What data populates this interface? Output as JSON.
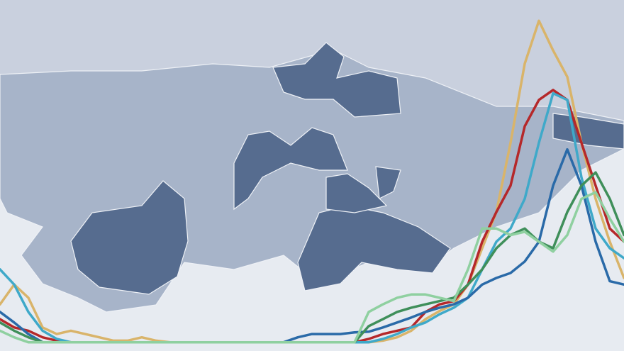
{
  "chart_data": {
    "type": "line",
    "ylim": [
      0,
      100
    ],
    "series": [
      {
        "color": "#d9b46a",
        "values": [
          12,
          18,
          14,
          5,
          3,
          4,
          3,
          2,
          1,
          1,
          2,
          1,
          0.5,
          0.5,
          0.5,
          0.5,
          0.5,
          0.5,
          0.5,
          0.5,
          0.5,
          0.5,
          0.5,
          0.5,
          0.5,
          0.5,
          0.5,
          1,
          2,
          4,
          7.5,
          10,
          12,
          18,
          29,
          40,
          61,
          85,
          98,
          89,
          81,
          61,
          44,
          31,
          20
        ]
      },
      {
        "color": "#b5282a",
        "values": [
          7.5,
          5,
          4,
          2,
          1,
          0.5,
          0.5,
          0.5,
          0.5,
          0.5,
          0.5,
          0.5,
          0.5,
          0.5,
          0.5,
          0.5,
          0.5,
          0.5,
          0.5,
          0.5,
          0.5,
          0.5,
          0.5,
          0.5,
          0.5,
          0.5,
          1.5,
          3,
          4,
          5,
          9.7,
          12,
          13,
          18,
          31,
          40,
          48,
          66,
          74,
          77,
          74,
          61,
          48,
          35,
          31
        ]
      },
      {
        "color": "#3fa9c9",
        "values": [
          22.6,
          18,
          9.7,
          4,
          1.5,
          0.5,
          0.5,
          0.5,
          0.5,
          0.5,
          0.5,
          0.5,
          0.5,
          0.5,
          0.5,
          0.5,
          0.5,
          0.5,
          0.5,
          0.5,
          0.5,
          0.5,
          0.5,
          0.5,
          0.5,
          0.5,
          0.5,
          1.5,
          3,
          5,
          6.5,
          9,
          11,
          14,
          22.6,
          31,
          35,
          44,
          61,
          76,
          74,
          50.5,
          35,
          29,
          26
        ]
      },
      {
        "color": "#2a6aa8",
        "values": [
          9.7,
          6.5,
          3,
          0.5,
          0.5,
          0.5,
          0.5,
          0.5,
          0.5,
          0.5,
          0.5,
          0.5,
          0.5,
          0.5,
          0.5,
          0.5,
          0.5,
          0.5,
          0.5,
          0.5,
          0.5,
          2,
          3,
          3,
          3,
          3.5,
          3.7,
          5,
          6.5,
          8,
          9.7,
          11,
          12,
          14,
          18,
          20,
          21.5,
          25,
          31,
          48,
          59,
          48,
          31,
          19,
          18
        ]
      },
      {
        "color": "#3f8f5a",
        "values": [
          6.5,
          4,
          2,
          0.5,
          0.5,
          0.5,
          0.5,
          0.5,
          0.5,
          0.5,
          0.5,
          0.5,
          0.5,
          0.5,
          0.5,
          0.5,
          0.5,
          0.5,
          0.5,
          0.5,
          0.5,
          0.5,
          0.5,
          0.5,
          0.5,
          0.5,
          5.4,
          7.5,
          9.7,
          11,
          12,
          13,
          14,
          18,
          22.6,
          29,
          33,
          35,
          31,
          29,
          40,
          48,
          52,
          44,
          33
        ]
      },
      {
        "color": "#8fd0a0",
        "values": [
          4,
          2,
          0.5,
          0.5,
          0.5,
          0.5,
          0.5,
          0.5,
          0.5,
          0.5,
          0.5,
          0.5,
          0.5,
          0.5,
          0.5,
          0.5,
          0.5,
          0.5,
          0.5,
          0.5,
          0.5,
          0.5,
          0.5,
          0.5,
          0.5,
          0.5,
          9.7,
          12,
          14,
          15,
          15,
          14,
          13,
          22.6,
          35,
          35,
          33,
          34,
          31,
          28,
          33,
          44,
          46,
          38,
          31
        ]
      }
    ]
  }
}
